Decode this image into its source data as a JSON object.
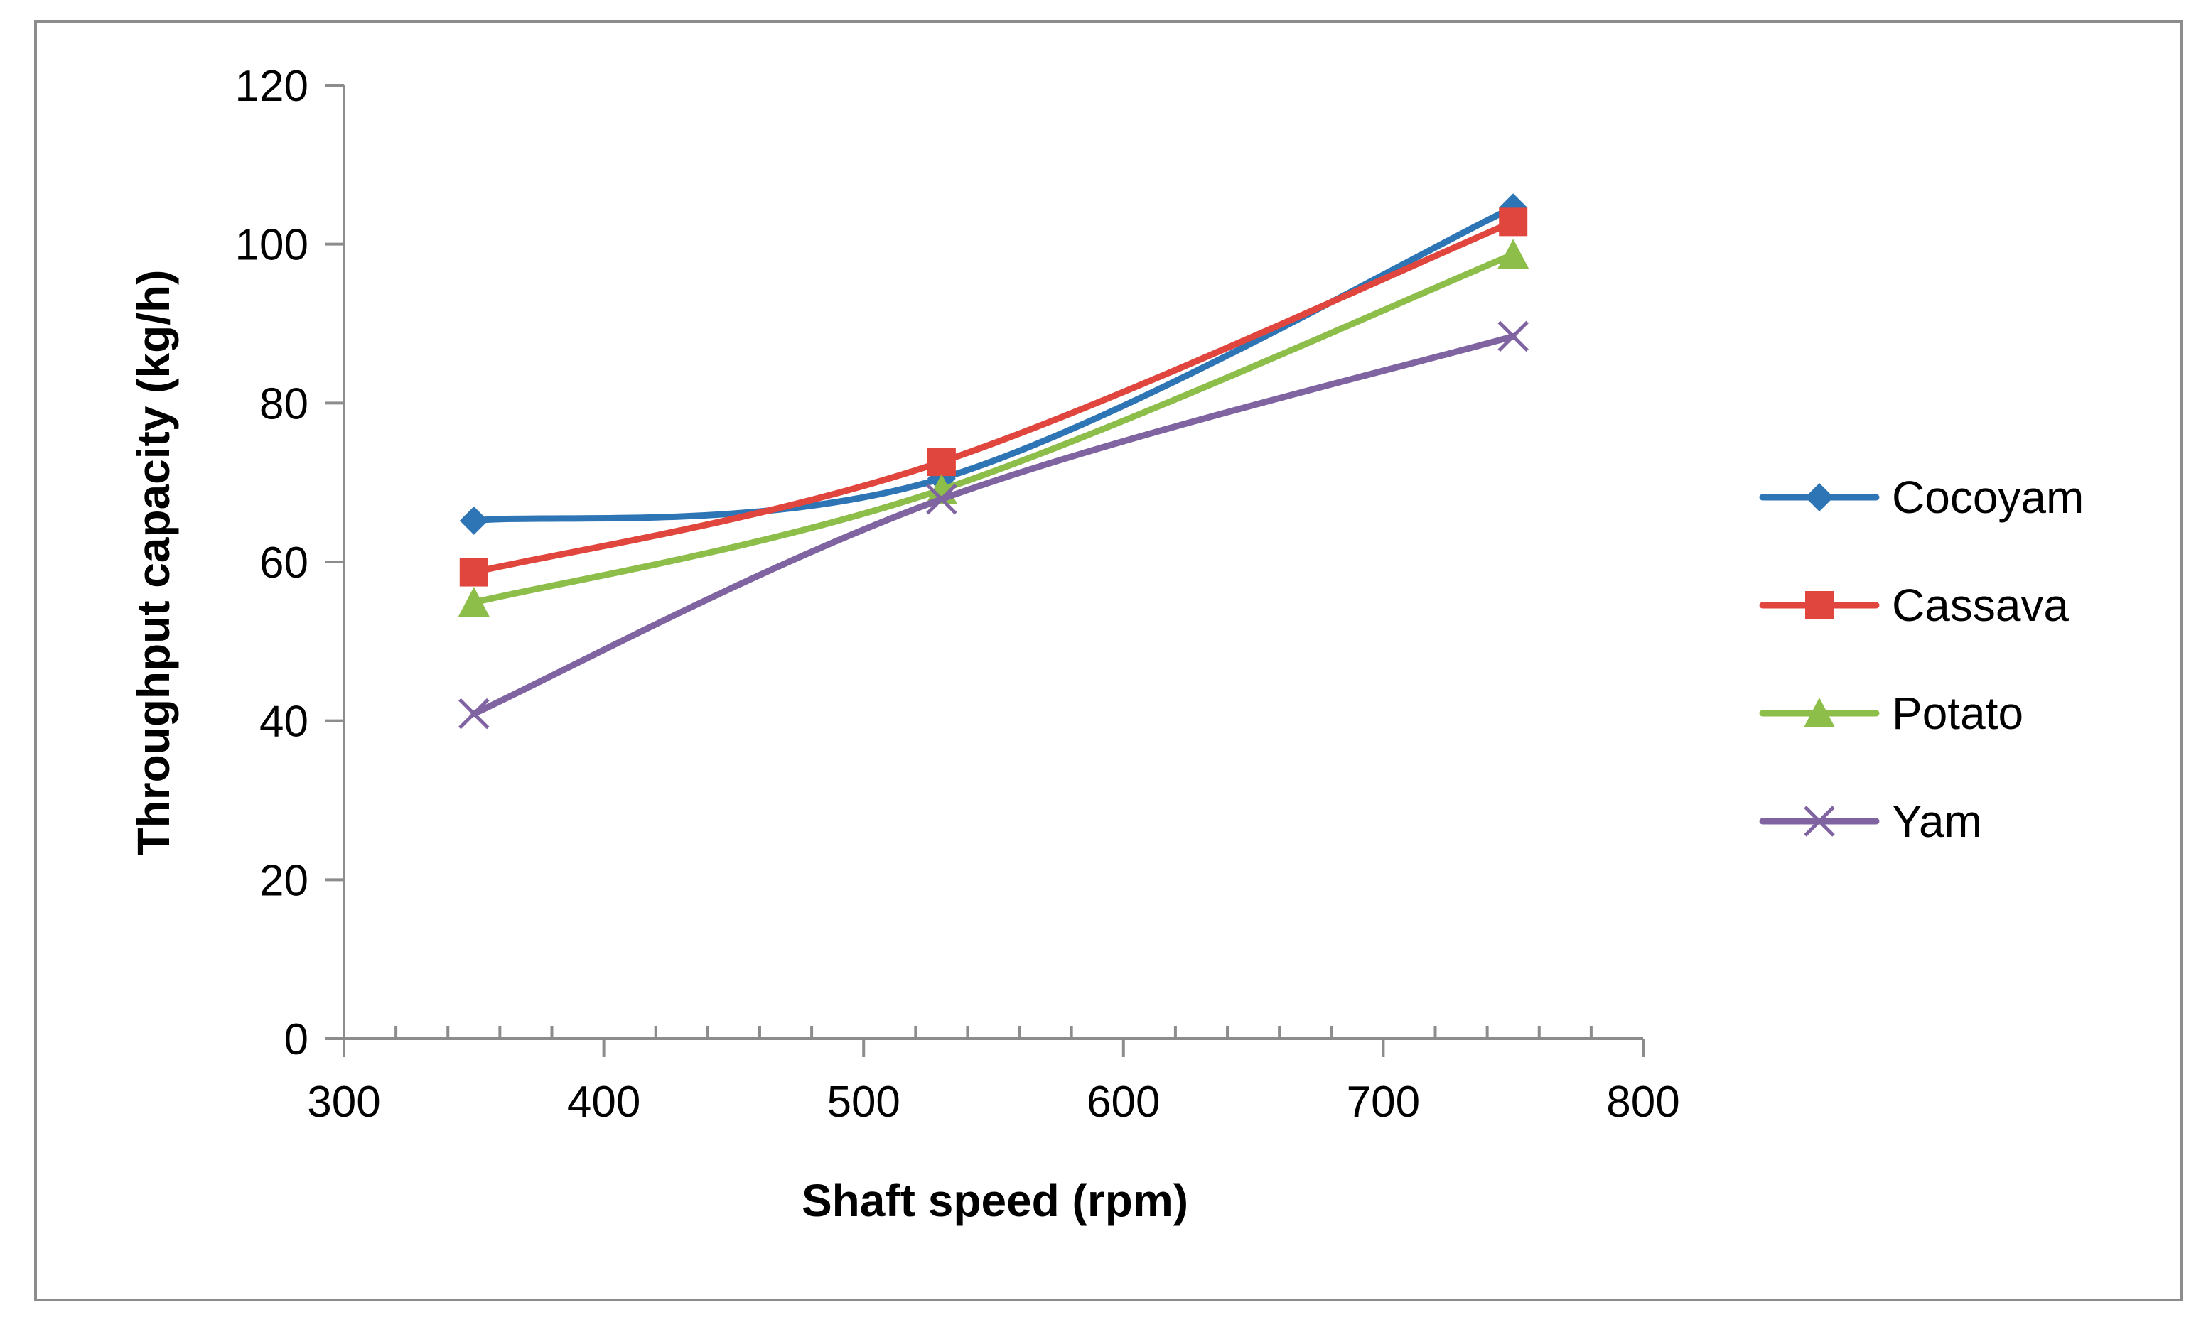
{
  "chart_data": {
    "type": "line",
    "title": "",
    "xlabel": "Shaft speed (rpm)",
    "ylabel": "Throughput capacity (kg/h)",
    "xlim": [
      300,
      800
    ],
    "ylim": [
      0,
      120
    ],
    "x_ticks": [
      "300",
      "400",
      "500",
      "600",
      "700",
      "800"
    ],
    "y_ticks": [
      "0",
      "20",
      "40",
      "60",
      "80",
      "100",
      "120"
    ],
    "x_minor_step": 20,
    "grid": false,
    "legend_position": "right",
    "x": [
      350,
      530,
      750
    ],
    "series": [
      {
        "name": "Cocoyam",
        "values": [
          65.2,
          70.5,
          104.6
        ],
        "color": "#2E75B6",
        "marker": "diamond"
      },
      {
        "name": "Cassava",
        "values": [
          58.7,
          72.6,
          102.8
        ],
        "color": "#E0463E",
        "marker": "square"
      },
      {
        "name": "Potato",
        "values": [
          54.9,
          69.1,
          98.7
        ],
        "color": "#8DBE4A",
        "marker": "triangle"
      },
      {
        "name": "Yam",
        "values": [
          40.9,
          67.9,
          88.4
        ],
        "color": "#8064A2",
        "marker": "x"
      }
    ]
  }
}
